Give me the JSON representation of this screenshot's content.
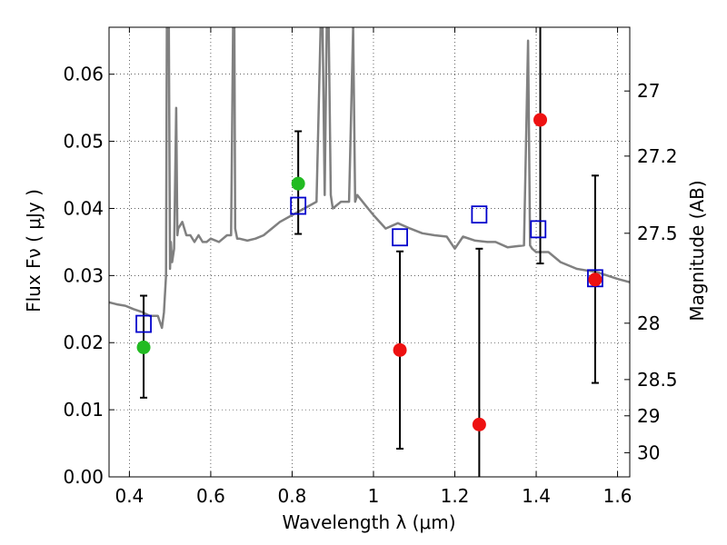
{
  "chart_data": {
    "type": "scatter",
    "xlabel": "Wavelength  λ (μm)",
    "ylabel": "Flux  Fν  ( μJy )",
    "ylabel_right": "Magnitude (AB)",
    "xlim": [
      0.35,
      1.63
    ],
    "ylim": [
      0.0,
      0.067
    ],
    "grid": true,
    "x_ticks": [
      {
        "value": 0.4,
        "label": "0.4"
      },
      {
        "value": 0.6,
        "label": "0.6"
      },
      {
        "value": 0.8,
        "label": "0.8"
      },
      {
        "value": 1.0,
        "label": "1"
      },
      {
        "value": 1.2,
        "label": "1.2"
      },
      {
        "value": 1.4,
        "label": "1.4"
      },
      {
        "value": 1.6,
        "label": "1.6"
      }
    ],
    "y_ticks": [
      {
        "value": 0.0,
        "label": "0.00"
      },
      {
        "value": 0.01,
        "label": "0.01"
      },
      {
        "value": 0.02,
        "label": "0.02"
      },
      {
        "value": 0.03,
        "label": "0.03"
      },
      {
        "value": 0.04,
        "label": "0.04"
      },
      {
        "value": 0.05,
        "label": "0.05"
      },
      {
        "value": 0.06,
        "label": "0.06"
      }
    ],
    "mag_ticks": [
      {
        "value": 0.0575,
        "label": "27"
      },
      {
        "value": 0.0478,
        "label": "27.2"
      },
      {
        "value": 0.0363,
        "label": "27.5"
      },
      {
        "value": 0.0229,
        "label": "28"
      },
      {
        "value": 0.0145,
        "label": "28.5"
      },
      {
        "value": 0.0091,
        "label": "29"
      },
      {
        "value": 0.0036,
        "label": "30"
      }
    ],
    "model_spectrum": {
      "color": "#808080",
      "x": [
        0.35,
        0.37,
        0.39,
        0.41,
        0.43,
        0.45,
        0.47,
        0.48,
        0.485,
        0.49,
        0.492,
        0.495,
        0.497,
        0.5,
        0.502,
        0.505,
        0.51,
        0.515,
        0.518,
        0.52,
        0.53,
        0.54,
        0.55,
        0.56,
        0.57,
        0.58,
        0.59,
        0.6,
        0.62,
        0.64,
        0.65,
        0.655,
        0.658,
        0.66,
        0.665,
        0.67,
        0.69,
        0.71,
        0.73,
        0.75,
        0.77,
        0.8,
        0.83,
        0.86,
        0.87,
        0.875,
        0.88,
        0.885,
        0.89,
        0.895,
        0.9,
        0.92,
        0.94,
        0.95,
        0.955,
        0.96,
        0.98,
        1.0,
        1.03,
        1.06,
        1.09,
        1.12,
        1.15,
        1.18,
        1.2,
        1.22,
        1.25,
        1.28,
        1.3,
        1.33,
        1.37,
        1.38,
        1.385,
        1.39,
        1.4,
        1.43,
        1.46,
        1.5,
        1.55,
        1.6,
        1.63
      ],
      "y": [
        0.026,
        0.0257,
        0.0255,
        0.025,
        0.0246,
        0.024,
        0.024,
        0.0222,
        0.0245,
        0.03,
        0.067,
        0.067,
        0.067,
        0.031,
        0.035,
        0.032,
        0.034,
        0.055,
        0.036,
        0.037,
        0.038,
        0.036,
        0.036,
        0.035,
        0.036,
        0.035,
        0.035,
        0.0355,
        0.035,
        0.036,
        0.036,
        0.067,
        0.067,
        0.037,
        0.0355,
        0.0355,
        0.0352,
        0.0355,
        0.036,
        0.037,
        0.038,
        0.039,
        0.04,
        0.041,
        0.067,
        0.067,
        0.042,
        0.067,
        0.067,
        0.042,
        0.04,
        0.041,
        0.041,
        0.067,
        0.041,
        0.042,
        0.0405,
        0.039,
        0.037,
        0.0378,
        0.037,
        0.0363,
        0.036,
        0.0358,
        0.034,
        0.0358,
        0.0352,
        0.035,
        0.035,
        0.0342,
        0.0345,
        0.065,
        0.0345,
        0.034,
        0.0335,
        0.0335,
        0.032,
        0.031,
        0.0305,
        0.0295,
        0.029
      ]
    },
    "measurements": [
      {
        "x": 0.435,
        "y": 0.0193,
        "yerr_low": 0.0118,
        "yerr_high": 0.027,
        "color": "#22bb22",
        "errorbar": true
      },
      {
        "x": 0.815,
        "y": 0.0437,
        "yerr_low": 0.0362,
        "yerr_high": 0.0515,
        "color": "#22bb22",
        "errorbar": true
      },
      {
        "x": 1.065,
        "y": 0.0189,
        "yerr_low": 0.0042,
        "yerr_high": 0.0336,
        "color": "#ee1111",
        "errorbar": true
      },
      {
        "x": 1.26,
        "y": 0.0078,
        "yerr_low": 0.0,
        "yerr_high": 0.034,
        "color": "#ee1111",
        "errorbar": true
      },
      {
        "x": 1.41,
        "y": 0.0532,
        "yerr_low": 0.0318,
        "yerr_high": 0.067,
        "color": "#ee1111",
        "errorbar": true
      },
      {
        "x": 1.545,
        "y": 0.0294,
        "yerr_low": 0.014,
        "yerr_high": 0.0449,
        "color": "#ee1111",
        "errorbar": true
      }
    ],
    "model_photometry": {
      "color": "#0000cc",
      "points": [
        {
          "x": 0.435,
          "y": 0.0228
        },
        {
          "x": 0.815,
          "y": 0.0404
        },
        {
          "x": 1.065,
          "y": 0.0357
        },
        {
          "x": 1.26,
          "y": 0.0391
        },
        {
          "x": 1.405,
          "y": 0.0369
        },
        {
          "x": 1.545,
          "y": 0.0296
        }
      ]
    }
  }
}
